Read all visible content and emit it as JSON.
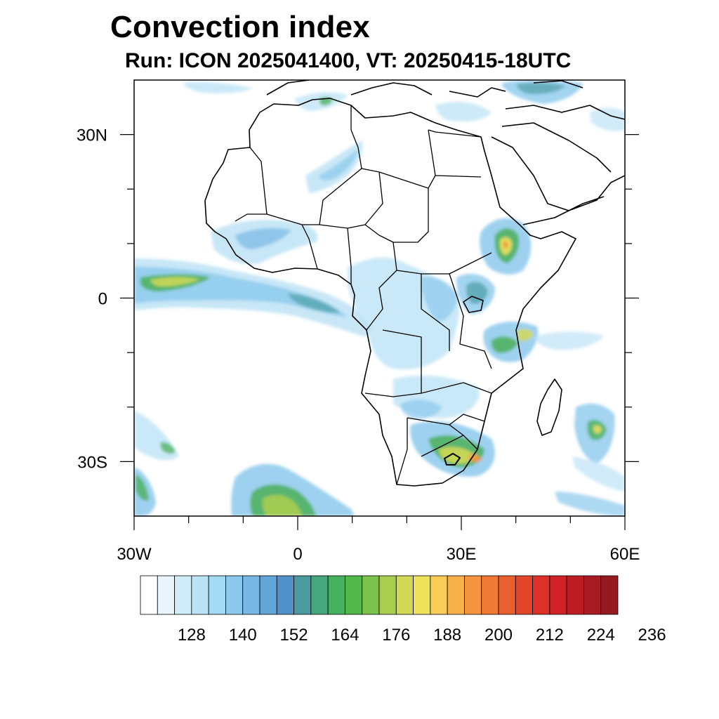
{
  "title": "Convection index",
  "subtitle": "Run: ICON 2025041400,  VT: 20250415-18UTC",
  "map": {
    "lon_range": [
      -30,
      60
    ],
    "lat_range": [
      -40,
      40
    ],
    "lon_ticks": [
      {
        "value": -30,
        "label": "30W"
      },
      {
        "value": 0,
        "label": "0"
      },
      {
        "value": 30,
        "label": "30E"
      },
      {
        "value": 60,
        "label": "60E"
      }
    ],
    "lat_ticks": [
      {
        "value": 30,
        "label": "30N"
      },
      {
        "value": 0,
        "label": "0"
      },
      {
        "value": -30,
        "label": "30S"
      }
    ],
    "minor_lon_ticks": [
      -20,
      -10,
      10,
      20,
      40,
      50
    ],
    "minor_lat_ticks": [
      -20,
      -10,
      10,
      20
    ]
  },
  "colorbar": {
    "colors": [
      "#ffffff",
      "#e9f5fc",
      "#d1ecf9",
      "#bbe3f6",
      "#a3d9f3",
      "#8cc9ec",
      "#78b8e4",
      "#61a5d9",
      "#4f91c8",
      "#4a9aa0",
      "#46a67d",
      "#45b05e",
      "#52b84a",
      "#7cc24c",
      "#a9cd4f",
      "#d2d955",
      "#eee35a",
      "#f9cc55",
      "#f8b04a",
      "#f5953f",
      "#f07a35",
      "#ea5f2e",
      "#e34529",
      "#dc3028",
      "#cf2126",
      "#bc1c24",
      "#a81a21",
      "#951a1f"
    ],
    "labels": [
      {
        "value": 128,
        "text": "128"
      },
      {
        "value": 140,
        "text": "140"
      },
      {
        "value": 152,
        "text": "152"
      },
      {
        "value": 164,
        "text": "164"
      },
      {
        "value": 176,
        "text": "176"
      },
      {
        "value": 188,
        "text": "188"
      },
      {
        "value": 200,
        "text": "200"
      },
      {
        "value": 212,
        "text": "212"
      },
      {
        "value": 224,
        "text": "224"
      },
      {
        "value": 236,
        "text": "236"
      }
    ],
    "min_edge": 116,
    "step": 4
  },
  "colors": {
    "frame": "#000000",
    "coastline": "#000000",
    "light_blue": "#bde3f6",
    "mid_blue": "#7fc0e8",
    "teal": "#4fa0a8",
    "green": "#4bb05b",
    "yellow_green": "#a9cd4f",
    "yellow": "#eee35a",
    "orange": "#f5953f"
  }
}
